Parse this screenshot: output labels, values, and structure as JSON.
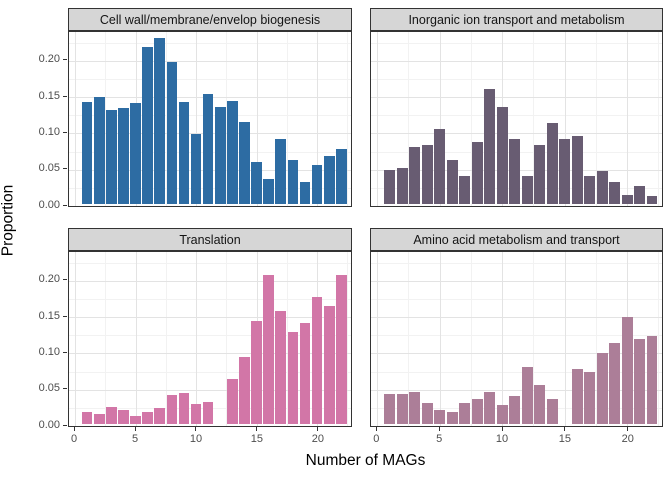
{
  "chart_data": {
    "type": "bar",
    "layout": "2x2 facet grid, shared x and y axes, histogram-style bars",
    "xlabel": "Number of MAGs",
    "ylabel": "Proportion",
    "xlim": [
      -0.5,
      22.8
    ],
    "ylim": [
      0,
      0.2417
    ],
    "grid": "major and minor gridlines on white panel, light gray",
    "x_values": [
      1,
      2,
      3,
      4,
      5,
      6,
      7,
      8,
      9,
      10,
      11,
      12,
      13,
      14,
      15,
      16,
      17,
      18,
      19,
      20,
      21,
      22
    ],
    "x_ticks": [
      {
        "v": 0,
        "label": "0"
      },
      {
        "v": 5,
        "label": "5"
      },
      {
        "v": 10,
        "label": "10"
      },
      {
        "v": 15,
        "label": "15"
      },
      {
        "v": 20,
        "label": "20"
      }
    ],
    "y_ticks": [
      {
        "v": 0.0,
        "label": "0.00"
      },
      {
        "v": 0.05,
        "label": "0.05"
      },
      {
        "v": 0.1,
        "label": "0.10"
      },
      {
        "v": 0.15,
        "label": "0.15"
      },
      {
        "v": 0.2,
        "label": "0.20"
      }
    ],
    "x_minor": [
      2.5,
      7.5,
      12.5,
      17.5,
      22.5
    ],
    "y_minor": [
      0.025,
      0.075,
      0.125,
      0.175,
      0.225
    ],
    "facets": [
      {
        "title": "Cell wall/membrane/envelop biogenesis",
        "position": "top-left",
        "color": "#2D6CA3",
        "values": [
          0.141,
          0.147,
          0.129,
          0.132,
          0.139,
          0.216,
          0.229,
          0.195,
          0.14,
          0.096,
          0.152,
          0.133,
          0.142,
          0.113,
          0.058,
          0.035,
          0.089,
          0.061,
          0.03,
          0.054,
          0.066,
          0.076
        ]
      },
      {
        "title": "Inorganic ion transport and metabolism",
        "position": "top-right",
        "color": "#685C72",
        "values": [
          0.047,
          0.049,
          0.078,
          0.081,
          0.104,
          0.06,
          0.038,
          0.085,
          0.159,
          0.134,
          0.089,
          0.038,
          0.081,
          0.112,
          0.089,
          0.094,
          0.038,
          0.045,
          0.03,
          0.012,
          0.025,
          0.011
        ]
      },
      {
        "title": "Translation",
        "position": "bottom-left",
        "color": "#D276A7",
        "values": [
          0.017,
          0.014,
          0.023,
          0.019,
          0.011,
          0.016,
          0.022,
          0.04,
          0.043,
          0.027,
          0.031,
          null,
          0.062,
          0.092,
          0.142,
          0.205,
          0.156,
          0.127,
          0.139,
          0.175,
          0.163,
          0.205
        ]
      },
      {
        "title": "Amino acid metabolism and transport",
        "position": "bottom-right",
        "color": "#AC7E98",
        "values": [
          0.042,
          0.042,
          0.044,
          0.029,
          0.019,
          0.017,
          0.029,
          0.034,
          0.044,
          0.026,
          0.038,
          0.078,
          0.054,
          0.034,
          null,
          0.076,
          0.071,
          0.098,
          0.111,
          0.148,
          0.117,
          0.121
        ]
      }
    ],
    "theme": {
      "strip_bg": "#D6D6D6",
      "panel_border": "#333333",
      "grid_major": "#E3E3E3",
      "grid_minor": "#F2F2F2",
      "axis_text": "#4D4D4D",
      "axis_title": "#000000"
    }
  }
}
